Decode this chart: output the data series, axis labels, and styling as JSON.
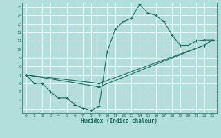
{
  "xlabel": "Humidex (Indice chaleur)",
  "background_color": "#b2dfdb",
  "grid_color": "#ffffff",
  "line_color": "#1a6b5e",
  "xlim": [
    -0.5,
    23.5
  ],
  "ylim": [
    2.5,
    15.5
  ],
  "xticks": [
    0,
    1,
    2,
    3,
    4,
    5,
    6,
    7,
    8,
    9,
    10,
    11,
    12,
    13,
    14,
    15,
    16,
    17,
    18,
    19,
    20,
    21,
    22,
    23
  ],
  "yticks": [
    3,
    4,
    5,
    6,
    7,
    8,
    9,
    10,
    11,
    12,
    13,
    14,
    15
  ],
  "line1": {
    "x": [
      0,
      1,
      2,
      3,
      4,
      5,
      6,
      7,
      8,
      9,
      10,
      11,
      12,
      13,
      14,
      15,
      16,
      17,
      18,
      19,
      20,
      21,
      22,
      23
    ],
    "y": [
      7.0,
      6.0,
      6.0,
      5.0,
      4.3,
      4.3,
      3.5,
      3.1,
      2.8,
      3.3,
      9.7,
      12.4,
      13.3,
      13.7,
      15.3,
      14.3,
      14.0,
      13.3,
      11.7,
      10.5,
      10.5,
      11.0,
      11.1,
      11.1
    ]
  },
  "line2": {
    "x": [
      0,
      9,
      22,
      23
    ],
    "y": [
      7.0,
      6.0,
      10.5,
      11.1
    ]
  },
  "line3": {
    "x": [
      0,
      9,
      22,
      23
    ],
    "y": [
      7.0,
      5.6,
      10.5,
      11.1
    ]
  }
}
